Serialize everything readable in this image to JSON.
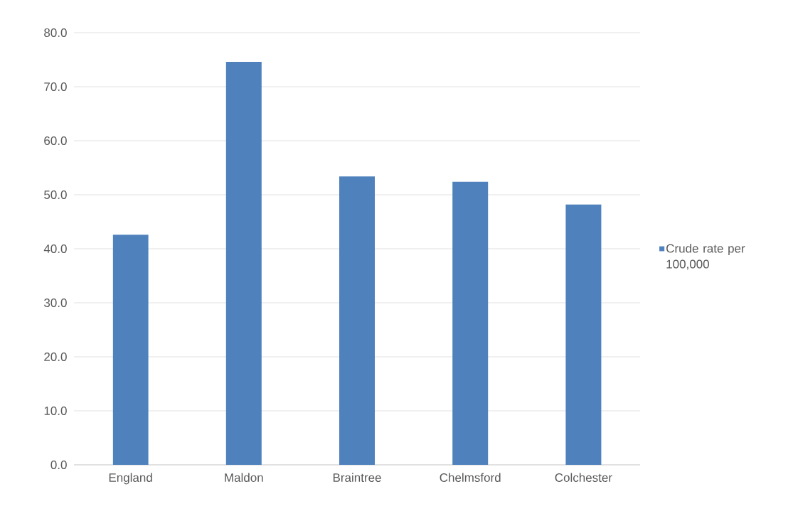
{
  "chart_data": {
    "type": "bar",
    "categories": [
      "England",
      "Maldon",
      "Braintree",
      "Chelmsford",
      "Colchester"
    ],
    "series": [
      {
        "name": "Crude rate per 100,000",
        "color": "#4f81bd",
        "values": [
          42.6,
          74.6,
          53.4,
          52.4,
          48.2
        ]
      }
    ],
    "ylim": [
      0,
      80
    ],
    "yticks": [
      {
        "value": 0,
        "label": "0.0"
      },
      {
        "value": 10,
        "label": "10.0"
      },
      {
        "value": 20,
        "label": "20.0"
      },
      {
        "value": 30,
        "label": "30.0"
      },
      {
        "value": 40,
        "label": "40.0"
      },
      {
        "value": 50,
        "label": "50.0"
      },
      {
        "value": 60,
        "label": "60.0"
      },
      {
        "value": 70,
        "label": "70.0"
      },
      {
        "value": 80,
        "label": "80.0"
      }
    ],
    "grid": "y",
    "legend": "right"
  }
}
